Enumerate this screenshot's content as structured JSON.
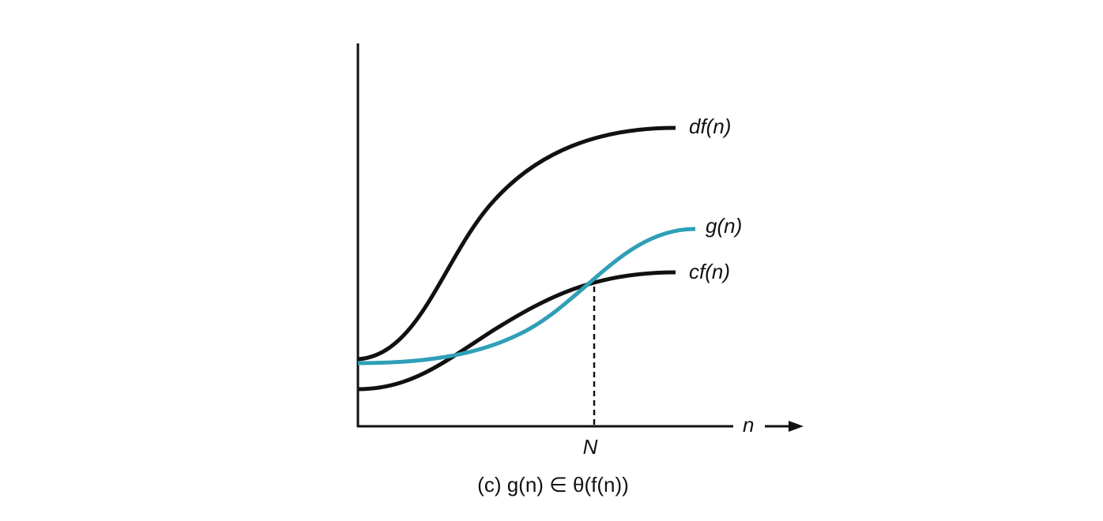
{
  "labels": {
    "df": "df(n)",
    "g": "g(n)",
    "cf": "cf(n)",
    "x_axis": "n",
    "crossing": "N"
  },
  "caption": "(c) g(n) ∈ θ(f(n))"
}
